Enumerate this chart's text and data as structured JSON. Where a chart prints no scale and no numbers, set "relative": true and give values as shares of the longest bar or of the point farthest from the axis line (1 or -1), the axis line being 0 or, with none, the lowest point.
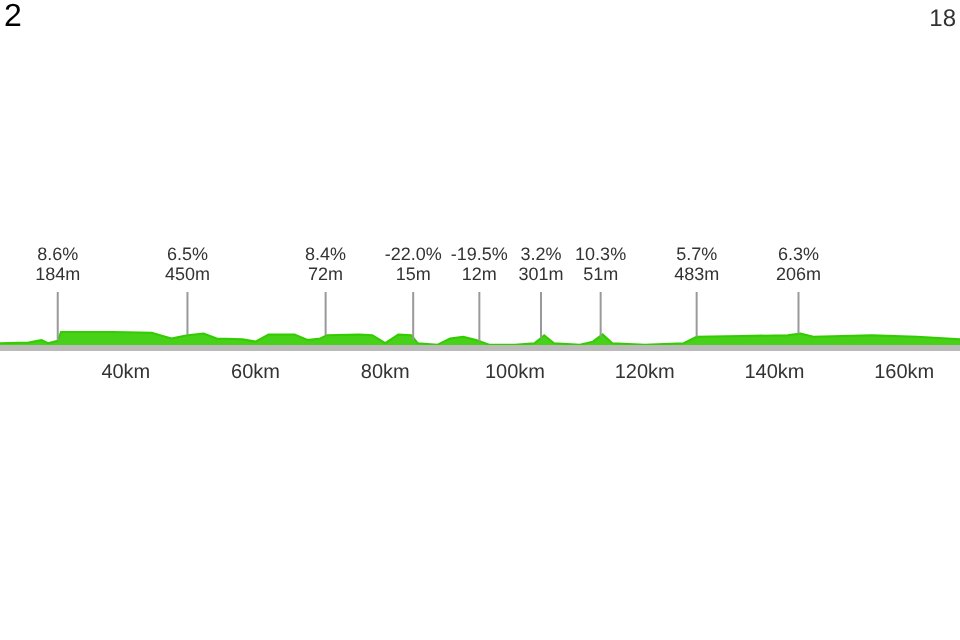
{
  "chart_data": {
    "type": "area",
    "title": "2",
    "relative": true,
    "x": [
      20.6,
      25,
      27,
      28,
      29.5,
      30,
      38,
      44,
      47,
      49.5,
      52,
      54,
      58,
      60,
      62,
      66,
      68,
      70,
      71,
      76,
      78,
      80,
      82,
      84,
      85,
      88,
      90,
      92,
      94,
      96,
      100,
      103,
      104.5,
      106,
      110,
      112,
      113.5,
      115,
      120,
      126,
      128,
      135,
      142,
      144,
      146,
      155,
      162,
      168.6
    ],
    "series": [
      {
        "color": "#33cc00",
        "values": [
          0.3,
          0.35,
          0.5,
          0.3,
          0.45,
          1.0,
          1.0,
          0.95,
          0.6,
          0.8,
          0.9,
          0.6,
          0.55,
          0.4,
          0.85,
          0.85,
          0.5,
          0.6,
          0.8,
          0.85,
          0.8,
          0.3,
          0.85,
          0.8,
          0.3,
          0.2,
          0.6,
          0.7,
          0.5,
          0.2,
          0.2,
          0.3,
          0.8,
          0.3,
          0.2,
          0.4,
          0.85,
          0.3,
          0.2,
          0.3,
          0.7,
          0.75,
          0.8,
          0.9,
          0.7,
          0.8,
          0.7,
          0.55
        ]
      }
    ],
    "xlim": [
      20.6,
      168.6
    ],
    "xticks": [
      {
        "value": 40,
        "label": "40km"
      },
      {
        "value": 60,
        "label": "60km"
      },
      {
        "value": 80,
        "label": "80km"
      },
      {
        "value": 100,
        "label": "100km"
      },
      {
        "value": 120,
        "label": "120km"
      },
      {
        "value": 140,
        "label": "140km"
      },
      {
        "value": 160,
        "label": "160km"
      }
    ],
    "annotations": [
      {
        "text": "8.6%\n184m",
        "x": 29.5,
        "y": 0.45
      },
      {
        "text": "6.5%\n450m",
        "x": 49.5,
        "y": 0.8
      },
      {
        "text": "8.4%\n72m",
        "x": 70.8,
        "y": 0.8
      },
      {
        "text": "-22.0%\n15m",
        "x": 84.3,
        "y": 0.5
      },
      {
        "text": "-19.5%\n12m",
        "x": 94.5,
        "y": 0.4
      },
      {
        "text": "3.2%\n301m",
        "x": 104,
        "y": 0.6
      },
      {
        "text": "10.3%\n51m",
        "x": 113.2,
        "y": 0.7
      },
      {
        "text": "5.7%\n483m",
        "x": 128,
        "y": 0.7
      },
      {
        "text": "6.3%\n206m",
        "x": 143.7,
        "y": 0.9
      },
      "18"
    ]
  }
}
